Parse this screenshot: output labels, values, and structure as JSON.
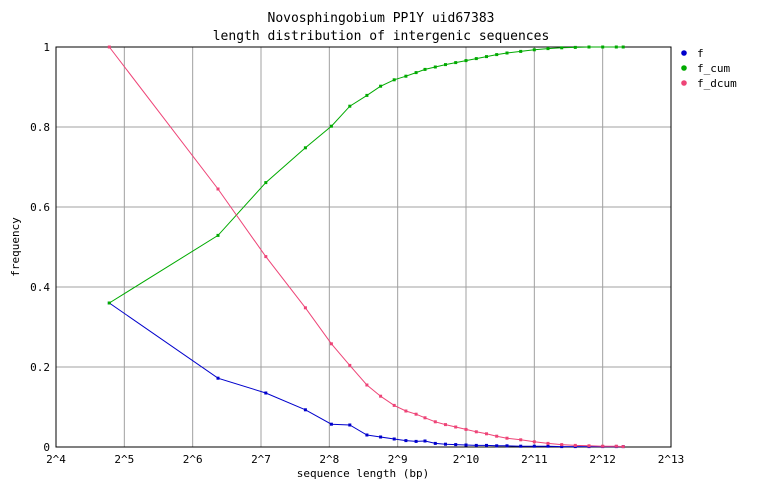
{
  "chart_data": {
    "type": "line",
    "title": "Novosphingobium PP1Y uid67383",
    "subtitle": "length distribution of intergenic sequences",
    "xlabel": "sequence length (bp)",
    "ylabel": "frequency",
    "x_scale": "log2",
    "xlim_exp": [
      4,
      13
    ],
    "ylim": [
      0,
      1
    ],
    "x_tick_labels": [
      "2^4",
      "2^5",
      "2^6",
      "2^7",
      "2^8",
      "2^9",
      "2^10",
      "2^11",
      "2^12",
      "2^13"
    ],
    "y_tick_labels": [
      "0",
      "0.2",
      "0.4",
      "0.6",
      "0.8",
      "1"
    ],
    "y_ticks": [
      0,
      0.2,
      0.4,
      0.6,
      0.8,
      1
    ],
    "grid": true,
    "legend_position": "right",
    "series": [
      {
        "name": "f",
        "color": "#0000cc",
        "marker": "square",
        "points": [
          [
            4.78,
            0.36
          ],
          [
            6.37,
            0.172
          ],
          [
            7.07,
            0.135
          ],
          [
            7.65,
            0.093
          ],
          [
            8.03,
            0.057
          ],
          [
            8.3,
            0.055
          ],
          [
            8.55,
            0.03
          ],
          [
            8.75,
            0.025
          ],
          [
            8.95,
            0.02
          ],
          [
            9.12,
            0.016
          ],
          [
            9.27,
            0.014
          ],
          [
            9.4,
            0.015
          ],
          [
            9.55,
            0.009
          ],
          [
            9.7,
            0.007
          ],
          [
            9.85,
            0.006
          ],
          [
            10.0,
            0.005
          ],
          [
            10.15,
            0.004
          ],
          [
            10.3,
            0.004
          ],
          [
            10.45,
            0.003
          ],
          [
            10.6,
            0.003
          ],
          [
            10.8,
            0.002
          ],
          [
            11.0,
            0.002
          ],
          [
            11.2,
            0.002
          ],
          [
            11.4,
            0.001
          ],
          [
            11.6,
            0.001
          ],
          [
            11.8,
            0.001
          ],
          [
            12.0,
            0.001
          ],
          [
            12.2,
            0.001
          ],
          [
            12.3,
            0.001
          ]
        ]
      },
      {
        "name": "f_cum",
        "color": "#00aa00",
        "marker": "square",
        "points": [
          [
            4.78,
            0.36
          ],
          [
            6.37,
            0.529
          ],
          [
            7.07,
            0.661
          ],
          [
            7.65,
            0.748
          ],
          [
            8.03,
            0.802
          ],
          [
            8.3,
            0.852
          ],
          [
            8.55,
            0.879
          ],
          [
            8.75,
            0.902
          ],
          [
            8.95,
            0.918
          ],
          [
            9.12,
            0.927
          ],
          [
            9.27,
            0.936
          ],
          [
            9.4,
            0.944
          ],
          [
            9.55,
            0.95
          ],
          [
            9.7,
            0.956
          ],
          [
            9.85,
            0.961
          ],
          [
            10.0,
            0.966
          ],
          [
            10.15,
            0.971
          ],
          [
            10.3,
            0.976
          ],
          [
            10.45,
            0.981
          ],
          [
            10.6,
            0.985
          ],
          [
            10.8,
            0.989
          ],
          [
            11.0,
            0.993
          ],
          [
            11.2,
            0.996
          ],
          [
            11.4,
            0.998
          ],
          [
            11.6,
            0.999
          ],
          [
            11.8,
            1.0
          ],
          [
            12.0,
            1.0
          ],
          [
            12.2,
            1.0
          ],
          [
            12.3,
            1.0
          ]
        ]
      },
      {
        "name": "f_dcum",
        "color": "#ee4477",
        "marker": "square",
        "points": [
          [
            4.78,
            1.0
          ],
          [
            6.37,
            0.645
          ],
          [
            7.07,
            0.476
          ],
          [
            7.65,
            0.348
          ],
          [
            8.03,
            0.258
          ],
          [
            8.3,
            0.204
          ],
          [
            8.55,
            0.155
          ],
          [
            8.75,
            0.127
          ],
          [
            8.95,
            0.104
          ],
          [
            9.12,
            0.09
          ],
          [
            9.27,
            0.082
          ],
          [
            9.4,
            0.073
          ],
          [
            9.55,
            0.063
          ],
          [
            9.7,
            0.056
          ],
          [
            9.85,
            0.05
          ],
          [
            10.0,
            0.044
          ],
          [
            10.15,
            0.038
          ],
          [
            10.3,
            0.033
          ],
          [
            10.45,
            0.027
          ],
          [
            10.6,
            0.022
          ],
          [
            10.8,
            0.018
          ],
          [
            11.0,
            0.013
          ],
          [
            11.2,
            0.009
          ],
          [
            11.4,
            0.006
          ],
          [
            11.6,
            0.004
          ],
          [
            11.8,
            0.003
          ],
          [
            12.0,
            0.002
          ],
          [
            12.2,
            0.002
          ],
          [
            12.3,
            0.001
          ]
        ]
      }
    ]
  }
}
